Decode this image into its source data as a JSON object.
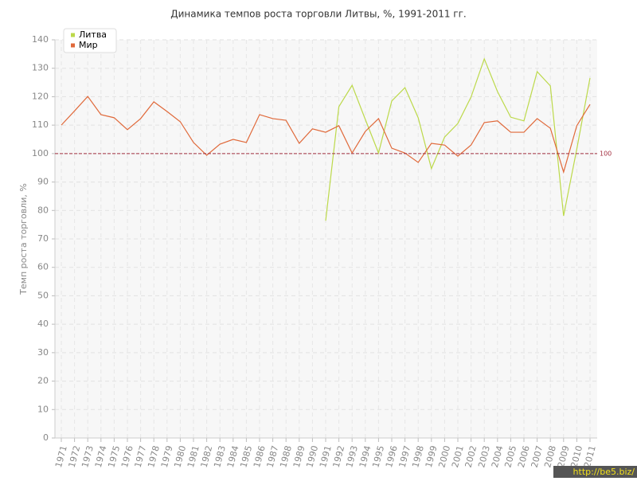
{
  "chart_data": {
    "type": "line",
    "title": "Динамика темпов роста торговли Литвы, %, 1991-2011 гг.",
    "y_label": "Темп роста торговли, %",
    "categories": [
      "1971",
      "1972",
      "1973",
      "1974",
      "1975",
      "1976",
      "1977",
      "1978",
      "1979",
      "1980",
      "1981",
      "1982",
      "1983",
      "1984",
      "1985",
      "1986",
      "1987",
      "1988",
      "1989",
      "1990",
      "1991",
      "1992",
      "1993",
      "1994",
      "1995",
      "1996",
      "1997",
      "1998",
      "1999",
      "2000",
      "2001",
      "2002",
      "2003",
      "2004",
      "2005",
      "2006",
      "2007",
      "2008",
      "2009",
      "2010",
      "2011"
    ],
    "series": [
      {
        "name": "Литва",
        "color": "#bcd94a",
        "values": [
          null,
          null,
          null,
          null,
          null,
          null,
          null,
          null,
          null,
          null,
          null,
          null,
          null,
          null,
          null,
          null,
          null,
          null,
          null,
          null,
          76.4,
          116.5,
          124,
          112,
          100.2,
          118.5,
          123.2,
          112.6,
          94.7,
          105.8,
          110.6,
          119.9,
          133.3,
          121.8,
          112.8,
          111.5,
          128.8,
          123.8,
          78.1,
          101.6,
          126.6
        ]
      },
      {
        "name": "Мир",
        "color": "#e0693a",
        "values": [
          110,
          115,
          120.1,
          113.7,
          112.6,
          108.4,
          112.3,
          118.2,
          114.8,
          111.2,
          103.9,
          99.4,
          103.3,
          105,
          103.9,
          113.7,
          112.3,
          111.7,
          103.6,
          108.7,
          107.5,
          109.8,
          100.2,
          107.8,
          112.3,
          101.9,
          100.2,
          96.9,
          103.6,
          103,
          99.1,
          103,
          110.9,
          111.5,
          107.5,
          107.5,
          112.3,
          108.9,
          93.5,
          109.8,
          117.3
        ]
      }
    ],
    "ylim": [
      0,
      140
    ],
    "yticks": [
      0,
      10,
      20,
      30,
      40,
      50,
      60,
      70,
      80,
      90,
      100,
      110,
      120,
      130,
      140
    ],
    "grid": true,
    "legend": "top-left",
    "reference_line": 100,
    "watermark": "http://be5.biz/"
  }
}
